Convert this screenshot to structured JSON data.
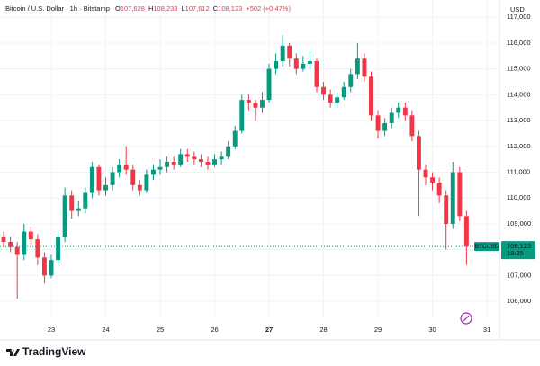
{
  "chart_data": {
    "type": "candlestick",
    "header": {
      "symbol": "Bitcoin / U.S. Dollar · 1h · Bitstamp",
      "ohlc": [
        {
          "label": "O",
          "value": "107,628"
        },
        {
          "label": "H",
          "value": "108,233"
        },
        {
          "label": "L",
          "value": "107,612"
        },
        {
          "label": "C",
          "value": "108,123"
        }
      ],
      "change": "+502 (+0.47%)"
    },
    "currency": "USD",
    "ticker": "BTCUSD",
    "last_price": {
      "value": 108123,
      "label": "108,123"
    },
    "countdown": "18:35",
    "logo": "TradingView",
    "up_color": "#089981",
    "down_color": "#f23645",
    "grid": true,
    "x": [
      22.125,
      22.25,
      22.375,
      22.5,
      22.625,
      22.75,
      22.875,
      23,
      23.125,
      23.25,
      23.375,
      23.5,
      23.625,
      23.75,
      23.875,
      24,
      24.125,
      24.25,
      24.375,
      24.5,
      24.625,
      24.75,
      24.875,
      25,
      25.125,
      25.25,
      25.375,
      25.5,
      25.625,
      25.75,
      25.875,
      26,
      26.125,
      26.25,
      26.375,
      26.5,
      26.625,
      26.75,
      26.875,
      27,
      27.125,
      27.25,
      27.375,
      27.5,
      27.625,
      27.75,
      27.875,
      28,
      28.125,
      28.25,
      28.375,
      28.5,
      28.625,
      28.75,
      28.875,
      29,
      29.125,
      29.25,
      29.375,
      29.5,
      29.625,
      29.75,
      29.875,
      30,
      30.125,
      30.25,
      30.375,
      30.5,
      30.625
    ],
    "open": [
      108500,
      108300,
      108100,
      107800,
      108700,
      108400,
      107700,
      107000,
      107600,
      108500,
      110100,
      109500,
      109600,
      110200,
      111200,
      110300,
      110500,
      111000,
      111300,
      111100,
      110500,
      110300,
      110900,
      111100,
      111200,
      111400,
      111300,
      111700,
      111600,
      111500,
      111400,
      111300,
      111500,
      111600,
      112000,
      112600,
      113800,
      113700,
      113500,
      113800,
      115000,
      115300,
      115900,
      115400,
      115000,
      115200,
      115300,
      114300,
      114000,
      113700,
      113900,
      114300,
      114800,
      115400,
      114700,
      113200,
      112600,
      112900,
      113300,
      113500,
      113200,
      112400,
      111100,
      110800,
      110600,
      110100,
      109000,
      111000,
      109300
    ],
    "high": [
      108700,
      108500,
      108300,
      109000,
      108900,
      108600,
      107900,
      107800,
      108700,
      110400,
      110300,
      109900,
      110400,
      111400,
      111300,
      110800,
      111200,
      111500,
      112000,
      111300,
      110700,
      111100,
      111300,
      111500,
      111600,
      111600,
      111900,
      111900,
      111800,
      111700,
      111600,
      111700,
      111800,
      112200,
      112800,
      114000,
      114000,
      113800,
      114100,
      115200,
      115600,
      116300,
      116000,
      115600,
      115500,
      115700,
      115400,
      114500,
      114200,
      114100,
      114500,
      115000,
      116000,
      115600,
      114900,
      113400,
      113100,
      113500,
      113700,
      113700,
      113400,
      112600,
      111300,
      111000,
      110800,
      110300,
      111400,
      111200,
      109500
    ],
    "low": [
      108100,
      107900,
      106100,
      107600,
      108200,
      107400,
      106700,
      106900,
      107400,
      108300,
      109200,
      109300,
      109400,
      110000,
      110100,
      110100,
      110300,
      110800,
      110900,
      110300,
      110100,
      110200,
      110700,
      110900,
      111000,
      111100,
      111200,
      111400,
      111300,
      111200,
      111100,
      111200,
      111300,
      111500,
      111900,
      112500,
      113400,
      113000,
      113300,
      113700,
      114800,
      115100,
      115100,
      114800,
      114900,
      115000,
      114100,
      113800,
      113500,
      113500,
      113800,
      114100,
      114600,
      114500,
      113000,
      112300,
      112400,
      112700,
      113100,
      113000,
      112200,
      109300,
      110500,
      110300,
      109800,
      108000,
      108800,
      109100,
      107400
    ],
    "close": [
      108300,
      108100,
      107800,
      108700,
      108400,
      107700,
      107000,
      107600,
      108500,
      110100,
      109500,
      109600,
      110200,
      111200,
      110300,
      110500,
      111000,
      111300,
      111100,
      110500,
      110300,
      110900,
      111100,
      111200,
      111400,
      111300,
      111700,
      111600,
      111500,
      111400,
      111300,
      111500,
      111600,
      112000,
      112600,
      113800,
      113700,
      113500,
      113800,
      115000,
      115300,
      115900,
      115400,
      115000,
      115200,
      115300,
      114300,
      114000,
      113700,
      113900,
      114300,
      114800,
      115400,
      114700,
      113200,
      112600,
      112900,
      113300,
      113500,
      113200,
      112400,
      111100,
      110800,
      110600,
      110100,
      109000,
      111000,
      109300,
      108123
    ],
    "xlim": [
      22.058,
      31.23
    ],
    "xticks": [
      23,
      24,
      25,
      26,
      27,
      28,
      29,
      30,
      31
    ],
    "bold_xtick": 27,
    "ylim": [
      105410,
      117670
    ],
    "yticks": [
      {
        "value": 106000,
        "label": "106,000"
      },
      {
        "value": 107000,
        "label": "107,000"
      },
      {
        "value": 108000,
        "label": "108,000"
      },
      {
        "value": 109000,
        "label": "109,000"
      },
      {
        "value": 110000,
        "label": "110,000"
      },
      {
        "value": 111000,
        "label": "111,000"
      },
      {
        "value": 112000,
        "label": "112,000"
      },
      {
        "value": 113000,
        "label": "113,000"
      },
      {
        "value": 114000,
        "label": "114,000"
      },
      {
        "value": 115000,
        "label": "115,000"
      },
      {
        "value": 116000,
        "label": "116,000"
      },
      {
        "value": 117000,
        "label": "117,000"
      }
    ]
  }
}
